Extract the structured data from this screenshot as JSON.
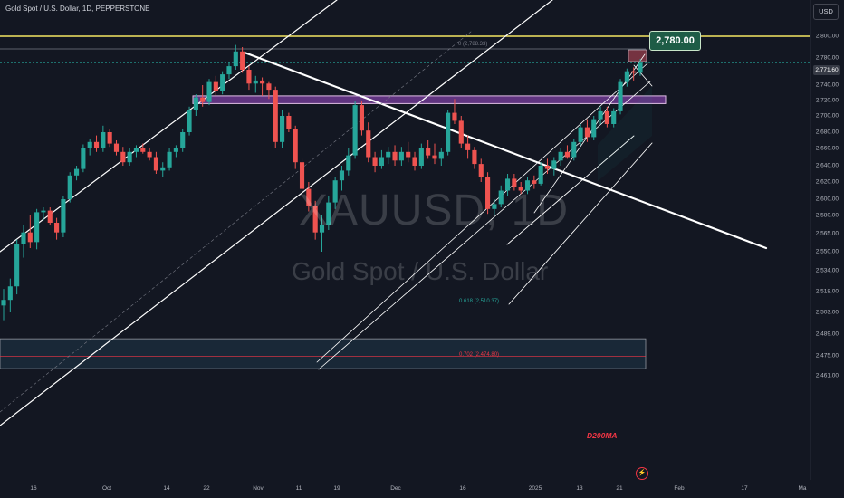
{
  "header": {
    "symbol_title": "Gold Spot / U.S. Dollar, 1D, PEPPERSTONE",
    "currency": "USD"
  },
  "watermark": {
    "symbol": "XAUUSD, 1D",
    "description": "Gold Spot / U.S. Dollar"
  },
  "callout": {
    "text": "2,780.00"
  },
  "last_price": {
    "text": "2,771.60",
    "value": 2771.6
  },
  "indicator_label": "D200MA",
  "flash_icon": "lightning-icon",
  "colors": {
    "background": "#131722",
    "bull": "#26a69a",
    "bear": "#ef5350",
    "resistance": "#f5e663",
    "zone": "#7b3fa0",
    "trendline": "#ffffff",
    "accent_red": "#f23645"
  },
  "chart_data": {
    "type": "candlestick",
    "title": "Gold Spot / U.S. Dollar, 1D, PEPPERSTONE",
    "y_tick_labels": [
      "2,800.00",
      "2,780.00",
      "2,760.00",
      "2,740.00",
      "2,720.00",
      "2,700.00",
      "2,680.00",
      "2,660.00",
      "2,640.00",
      "2,620.00",
      "2,600.00",
      "2,580.00",
      "2,565.00",
      "2,550.00",
      "2,534.00",
      "2,518.00",
      "2,503.00",
      "2,489.00",
      "2,475.00",
      "2,461.00"
    ],
    "y_tick_values": [
      2800,
      2780,
      2760,
      2740,
      2720,
      2700,
      2680,
      2660,
      2640,
      2620,
      2600,
      2580,
      2565,
      2550,
      2534,
      2518,
      2503,
      2489,
      2475,
      2461
    ],
    "x_tick_labels": [
      "16",
      "Oct",
      "14",
      "22",
      "Nov",
      "11",
      "19",
      "Dec",
      "16",
      "2025",
      "13",
      "21",
      "Feb",
      "17",
      "Ma"
    ],
    "x_tick_dates": [
      "2024-09-16",
      "2024-10-01",
      "2024-10-14",
      "2024-10-22",
      "2024-11-01",
      "2024-11-11",
      "2024-11-19",
      "2024-12-01",
      "2024-12-16",
      "2025-01-01",
      "2025-01-13",
      "2025-01-21",
      "2025-02-01",
      "2025-02-17",
      "2025-03-01"
    ],
    "start_date": "2024-09-10",
    "series_ohlc": [
      [
        2508,
        2520,
        2498,
        2512
      ],
      [
        2512,
        2528,
        2503,
        2522
      ],
      [
        2522,
        2560,
        2516,
        2556
      ],
      [
        2556,
        2572,
        2545,
        2566
      ],
      [
        2566,
        2580,
        2553,
        2558
      ],
      [
        2558,
        2588,
        2552,
        2584
      ],
      [
        2584,
        2590,
        2576,
        2586
      ],
      [
        2586,
        2590,
        2572,
        2574
      ],
      [
        2574,
        2578,
        2560,
        2566
      ],
      [
        2566,
        2604,
        2562,
        2600
      ],
      [
        2600,
        2632,
        2596,
        2628
      ],
      [
        2628,
        2640,
        2622,
        2636
      ],
      [
        2636,
        2665,
        2632,
        2660
      ],
      [
        2660,
        2672,
        2652,
        2668
      ],
      [
        2668,
        2676,
        2656,
        2660
      ],
      [
        2660,
        2688,
        2656,
        2680
      ],
      [
        2680,
        2684,
        2662,
        2666
      ],
      [
        2666,
        2670,
        2652,
        2656
      ],
      [
        2656,
        2662,
        2640,
        2644
      ],
      [
        2644,
        2660,
        2640,
        2656
      ],
      [
        2656,
        2664,
        2650,
        2660
      ],
      [
        2660,
        2666,
        2654,
        2656
      ],
      [
        2656,
        2660,
        2646,
        2650
      ],
      [
        2650,
        2656,
        2630,
        2634
      ],
      [
        2634,
        2644,
        2626,
        2638
      ],
      [
        2638,
        2660,
        2634,
        2656
      ],
      [
        2656,
        2664,
        2650,
        2660
      ],
      [
        2660,
        2684,
        2656,
        2680
      ],
      [
        2680,
        2712,
        2676,
        2708
      ],
      [
        2708,
        2728,
        2700,
        2724
      ],
      [
        2724,
        2740,
        2712,
        2718
      ],
      [
        2718,
        2748,
        2714,
        2744
      ],
      [
        2744,
        2752,
        2726,
        2732
      ],
      [
        2732,
        2758,
        2728,
        2754
      ],
      [
        2754,
        2772,
        2748,
        2766
      ],
      [
        2766,
        2792,
        2760,
        2786
      ],
      [
        2786,
        2790,
        2756,
        2760
      ],
      [
        2760,
        2766,
        2734,
        2742
      ],
      [
        2742,
        2752,
        2730,
        2746
      ],
      [
        2746,
        2750,
        2726,
        2742
      ],
      [
        2742,
        2744,
        2722,
        2734
      ],
      [
        2734,
        2738,
        2660,
        2668
      ],
      [
        2668,
        2708,
        2660,
        2700
      ],
      [
        2700,
        2704,
        2680,
        2684
      ],
      [
        2684,
        2688,
        2636,
        2644
      ],
      [
        2644,
        2648,
        2606,
        2612
      ],
      [
        2612,
        2620,
        2585,
        2592
      ],
      [
        2592,
        2598,
        2560,
        2566
      ],
      [
        2566,
        2580,
        2550,
        2572
      ],
      [
        2572,
        2604,
        2568,
        2596
      ],
      [
        2596,
        2626,
        2588,
        2622
      ],
      [
        2622,
        2640,
        2610,
        2634
      ],
      [
        2634,
        2660,
        2628,
        2652
      ],
      [
        2652,
        2720,
        2648,
        2714
      ],
      [
        2714,
        2720,
        2676,
        2682
      ],
      [
        2682,
        2692,
        2644,
        2650
      ],
      [
        2650,
        2656,
        2632,
        2640
      ],
      [
        2640,
        2658,
        2636,
        2650
      ],
      [
        2650,
        2662,
        2642,
        2656
      ],
      [
        2656,
        2664,
        2640,
        2646
      ],
      [
        2646,
        2662,
        2640,
        2656
      ],
      [
        2656,
        2668,
        2644,
        2650
      ],
      [
        2650,
        2656,
        2634,
        2640
      ],
      [
        2640,
        2666,
        2636,
        2660
      ],
      [
        2660,
        2670,
        2648,
        2652
      ],
      [
        2652,
        2666,
        2642,
        2648
      ],
      [
        2648,
        2660,
        2640,
        2656
      ],
      [
        2656,
        2708,
        2652,
        2704
      ],
      [
        2704,
        2722,
        2690,
        2694
      ],
      [
        2694,
        2700,
        2660,
        2666
      ],
      [
        2666,
        2676,
        2648,
        2658
      ],
      [
        2658,
        2662,
        2636,
        2642
      ],
      [
        2642,
        2648,
        2620,
        2626
      ],
      [
        2626,
        2632,
        2582,
        2588
      ],
      [
        2588,
        2600,
        2580,
        2594
      ],
      [
        2594,
        2616,
        2590,
        2610
      ],
      [
        2610,
        2630,
        2604,
        2624
      ],
      [
        2624,
        2630,
        2610,
        2614
      ],
      [
        2614,
        2620,
        2606,
        2610
      ],
      [
        2610,
        2626,
        2606,
        2622
      ],
      [
        2622,
        2628,
        2612,
        2618
      ],
      [
        2618,
        2644,
        2616,
        2640
      ],
      [
        2640,
        2648,
        2630,
        2636
      ],
      [
        2636,
        2650,
        2628,
        2646
      ],
      [
        2646,
        2660,
        2640,
        2656
      ],
      [
        2656,
        2664,
        2648,
        2650
      ],
      [
        2650,
        2672,
        2646,
        2668
      ],
      [
        2668,
        2690,
        2664,
        2686
      ],
      [
        2686,
        2696,
        2668,
        2674
      ],
      [
        2674,
        2700,
        2670,
        2696
      ],
      [
        2696,
        2712,
        2690,
        2706
      ],
      [
        2706,
        2712,
        2686,
        2690
      ],
      [
        2690,
        2710,
        2686,
        2706
      ],
      [
        2706,
        2748,
        2702,
        2744
      ],
      [
        2744,
        2762,
        2738,
        2758
      ],
      [
        2758,
        2764,
        2746,
        2756
      ],
      [
        2756,
        2778,
        2752,
        2771.6
      ]
    ],
    "horizontal_levels": [
      {
        "name": "resistance",
        "value": 2800
      },
      {
        "name": "fib-0",
        "value": 2788.33,
        "label": "0 (2,788.33)"
      },
      {
        "name": "fib-0.618",
        "value": 2510.37,
        "label": "0.618 (2,510.37)"
      },
      {
        "name": "fib-0.702",
        "value": 2474.8,
        "label": "0.702 (2,474.80)"
      }
    ],
    "zones": [
      {
        "name": "purple-zone",
        "from": 2716,
        "to": 2726
      },
      {
        "name": "d200-band",
        "from": 2466,
        "to": 2486
      }
    ],
    "grid": false,
    "legend": "none"
  }
}
